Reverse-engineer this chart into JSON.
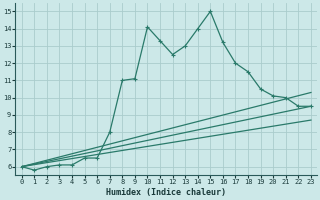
{
  "xlabel": "Humidex (Indice chaleur)",
  "xlim": [
    -0.5,
    23.5
  ],
  "ylim": [
    5.5,
    15.5
  ],
  "xticks": [
    0,
    1,
    2,
    3,
    4,
    5,
    6,
    7,
    8,
    9,
    10,
    11,
    12,
    13,
    14,
    15,
    16,
    17,
    18,
    19,
    20,
    21,
    22,
    23
  ],
  "yticks": [
    6,
    7,
    8,
    9,
    10,
    11,
    12,
    13,
    14,
    15
  ],
  "bg_color": "#cce8e8",
  "grid_color": "#aacccc",
  "line_color": "#2a7a6a",
  "line1_x": [
    0,
    1,
    2,
    3,
    4,
    5,
    6,
    7,
    8,
    9,
    10,
    11,
    12,
    13,
    14,
    15,
    16,
    17,
    18,
    19,
    20,
    21,
    22,
    23
  ],
  "line1_y": [
    6.0,
    5.8,
    6.0,
    6.1,
    6.1,
    6.5,
    6.5,
    8.0,
    11.0,
    11.1,
    14.1,
    13.3,
    12.5,
    13.0,
    14.0,
    15.0,
    13.2,
    12.0,
    11.5,
    10.5,
    10.1,
    10.0,
    9.5,
    9.5
  ],
  "line2_x": [
    0,
    23
  ],
  "line2_y": [
    6.0,
    10.3
  ],
  "line3_x": [
    0,
    23
  ],
  "line3_y": [
    6.0,
    9.5
  ],
  "line4_x": [
    0,
    23
  ],
  "line4_y": [
    6.0,
    8.7
  ]
}
